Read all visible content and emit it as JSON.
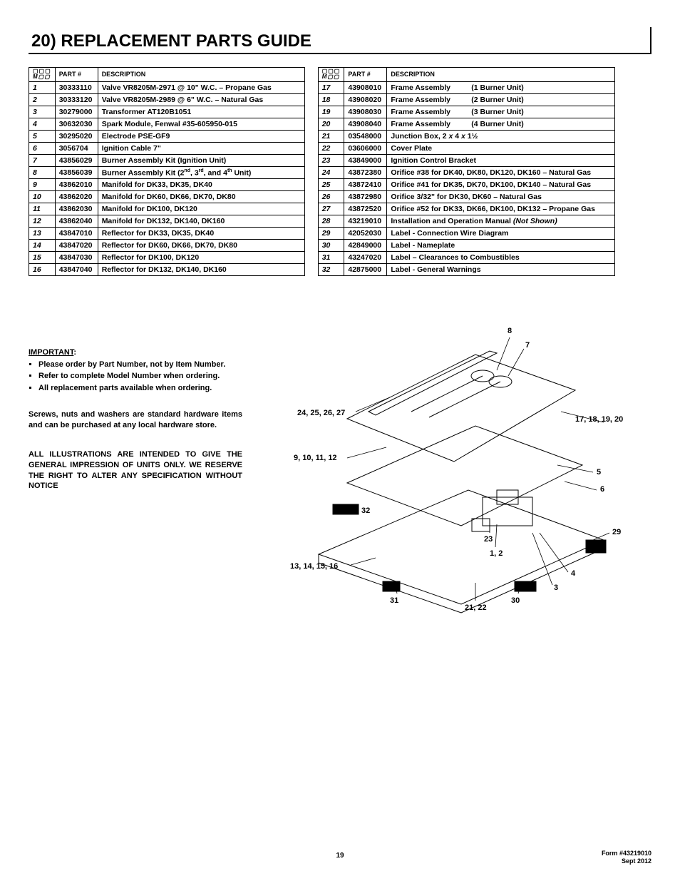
{
  "section_title": "20)   REPLACEMENT PARTS GUIDE",
  "headers": {
    "item_top": "▢▢▢",
    "item_bot": "M▢▢",
    "part": "PART #",
    "desc": "DESCRIPTION"
  },
  "left_rows": [
    {
      "n": "1",
      "p": "30333110",
      "d": "Valve VR8205M-2971 @ 10\" W.C. – Propane Gas"
    },
    {
      "n": "2",
      "p": "30333120",
      "d": "Valve VR8205M-2989 @ 6\" W.C. – Natural Gas"
    },
    {
      "n": "3",
      "p": "30279000",
      "d": "Transformer AT120B1051"
    },
    {
      "n": "4",
      "p": "30632030",
      "d": "Spark Module, Fenwal #35-605950-015"
    },
    {
      "n": "5",
      "p": "30295020",
      "d": "Electrode PSE-GF9"
    },
    {
      "n": "6",
      "p": "3056704",
      "d": "Ignition Cable 7\""
    },
    {
      "n": "7",
      "p": "43856029",
      "d": "Burner Assembly Kit (Ignition Unit)"
    },
    {
      "n": "8",
      "p": "43856039",
      "d": "Burner Assembly Kit (2<sup>nd</sup>, 3<sup>rd</sup>, and 4<sup>th</sup> Unit)"
    },
    {
      "n": "9",
      "p": "43862010",
      "d": "Manifold for DK33, DK35, DK40"
    },
    {
      "n": "10",
      "p": "43862020",
      "d": "Manifold for DK60, DK66, DK70, DK80"
    },
    {
      "n": "11",
      "p": "43862030",
      "d": "Manifold for DK100, DK120"
    },
    {
      "n": "12",
      "p": "43862040",
      "d": "Manifold for DK132, DK140, DK160"
    },
    {
      "n": "13",
      "p": "43847010",
      "d": "Reflector for DK33, DK35, DK40"
    },
    {
      "n": "14",
      "p": "43847020",
      "d": "Reflector for DK60, DK66, DK70, DK80"
    },
    {
      "n": "15",
      "p": "43847030",
      "d": "Reflector for DK100, DK120"
    },
    {
      "n": "16",
      "p": "43847040",
      "d": "Reflector for DK132, DK140, DK160"
    }
  ],
  "right_rows": [
    {
      "n": "17",
      "p": "43908010",
      "d": "<span class='frame-extra'>Frame Assembly</span> (1 Burner Unit)"
    },
    {
      "n": "18",
      "p": "43908020",
      "d": "<span class='frame-extra'>Frame Assembly</span> (2 Burner Unit)"
    },
    {
      "n": "19",
      "p": "43908030",
      "d": "<span class='frame-extra'>Frame Assembly</span> (3 Burner Unit)"
    },
    {
      "n": "20",
      "p": "43908040",
      "d": "<span class='frame-extra'>Frame Assembly</span> (4 Burner Unit)"
    },
    {
      "n": "21",
      "p": "03548000",
      "d": "Junction Box, 2 <i>x</i> 4 <i>x</i> 1½"
    },
    {
      "n": "22",
      "p": "03606000",
      "d": "Cover Plate"
    },
    {
      "n": "23",
      "p": "43849000",
      "d": "Ignition Control Bracket"
    },
    {
      "n": "24",
      "p": "43872380",
      "d": "Orifice #38 for DK40, DK80, DK120, DK160 – Natural Gas"
    },
    {
      "n": "25",
      "p": "43872410",
      "d": "Orifice #41 for DK35, DK70, DK100, DK140 – Natural Gas"
    },
    {
      "n": "26",
      "p": "43872980",
      "d": "Orifice 3/32\" for DK30, DK60 – Natural Gas"
    },
    {
      "n": "27",
      "p": "43872520",
      "d": "Orifice #52 for DK33, DK66, DK100, DK132 – Propane Gas"
    },
    {
      "n": "28",
      "p": "43219010",
      "d": "Installation and Operation Manual  <i>(Not Shown)</i>"
    },
    {
      "n": "29",
      "p": "42052030",
      "d": "Label - Connection Wire Diagram"
    },
    {
      "n": "30",
      "p": "42849000",
      "d": "Label - Nameplate"
    },
    {
      "n": "31",
      "p": "43247020",
      "d": "Label – Clearances to Combustibles"
    },
    {
      "n": "32",
      "p": "42875000",
      "d": "Label -  General Warnings"
    }
  ],
  "notes": {
    "important": "IMPORTANT",
    "bullet1": "Please order by Part Number, not by Item Number.",
    "bullet2": "Refer to complete Model Number when ordering.",
    "bullet3": "All replacement parts available when ordering.",
    "para1": "Screws, nuts and washers are standard hardware items and can be purchased at any local hardware store.",
    "para2": "ALL ILLUSTRATIONS ARE INTENDED TO GIVE THE GENERAL IMPRESSION OF UNITS ONLY. WE RESERVE THE RIGHT TO ALTER ANY SPECIFICATION WITHOUT NOTICE"
  },
  "callouts": {
    "c8": "8",
    "c7": "7",
    "c24": "24, 25, 26, 27",
    "c17": "17, 18, 19, 20",
    "c9": "9, 10, 11, 12",
    "c5": "5",
    "c6": "6",
    "c32": "32",
    "c23": "23",
    "c1": "1, 2",
    "c29": "29",
    "c4": "4",
    "c13": "13, 14, 15, 16",
    "c31": "31",
    "c30": "30",
    "c3": "3",
    "c21": "21, 22"
  },
  "page_number": "19",
  "footer_form": "Form #43219010",
  "footer_date": "Sept 2012"
}
